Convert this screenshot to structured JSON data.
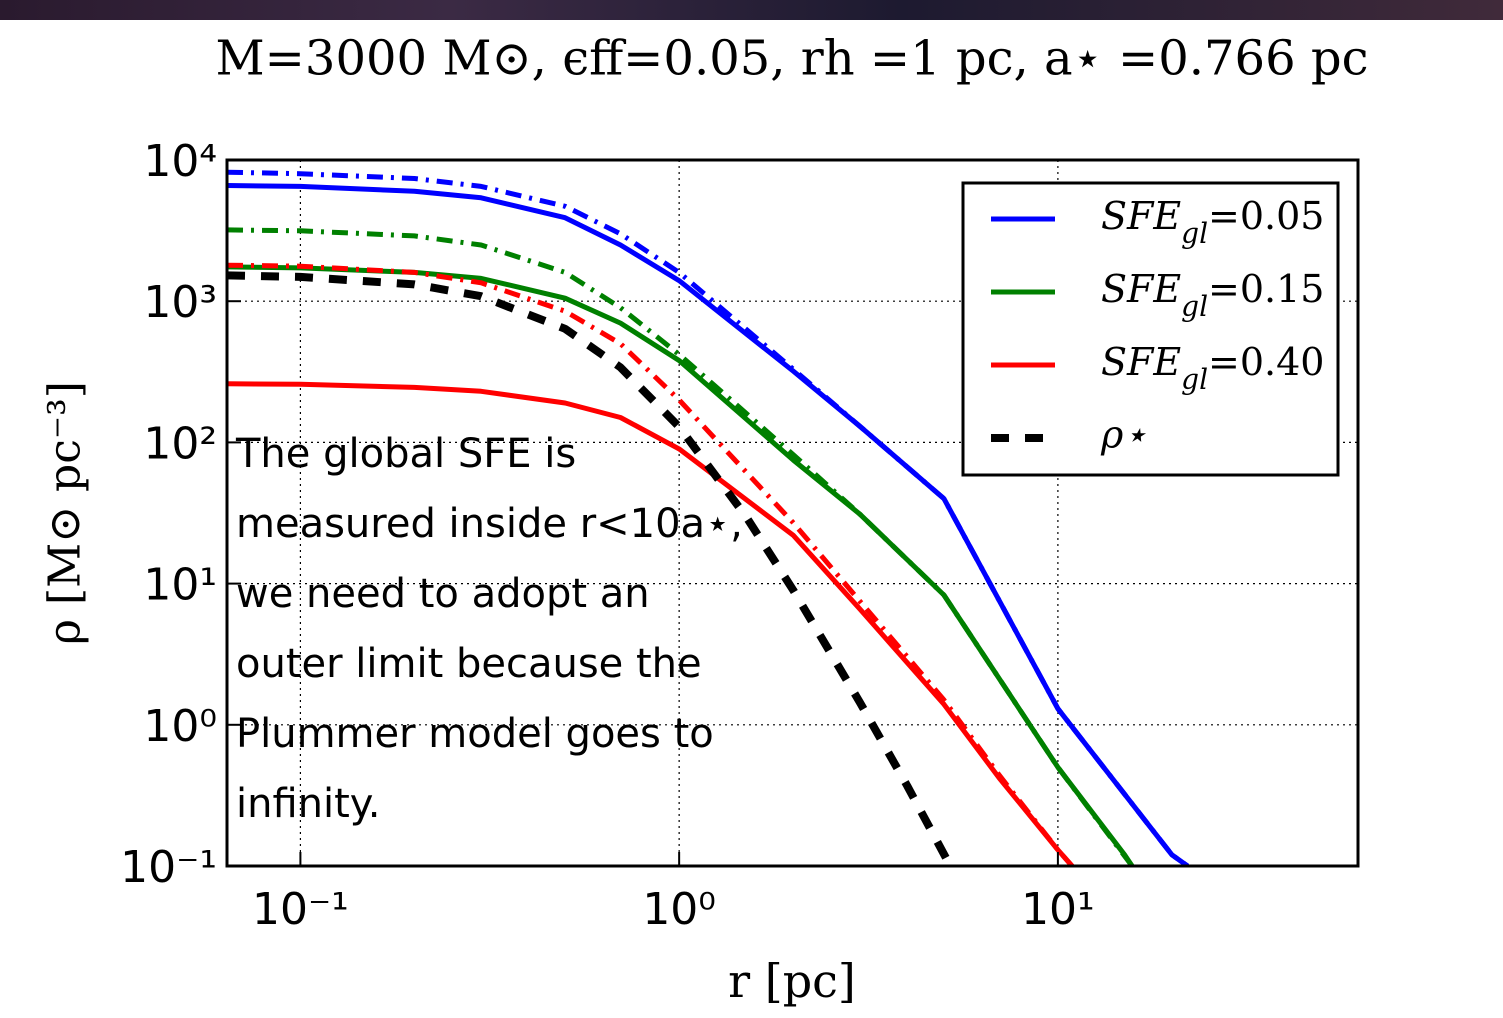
{
  "chart_data": {
    "type": "line",
    "title": "M=3000 M⊙, ϵff=0.05, rh =1 pc, a⋆ =0.766 pc",
    "xlabel": "r [pc]",
    "ylabel": "ρ [M⊙ pc⁻³]",
    "log_x": true,
    "log_y": true,
    "grid": true,
    "legend": "upper right",
    "xlim": [
      0.064,
      62
    ],
    "ylim": [
      0.1,
      10000
    ],
    "xticks": [
      {
        "value": 0.1,
        "label": "10⁻¹"
      },
      {
        "value": 1,
        "label": "10⁰"
      },
      {
        "value": 10,
        "label": "10¹"
      }
    ],
    "yticks": [
      {
        "value": 0.1,
        "label": "10⁻¹"
      },
      {
        "value": 1,
        "label": "10⁰"
      },
      {
        "value": 10,
        "label": "10¹"
      },
      {
        "value": 100,
        "label": "10²"
      },
      {
        "value": 1000,
        "label": "10³"
      },
      {
        "value": 10000,
        "label": "10⁴"
      }
    ],
    "annotation": [
      "The global SFE is",
      "measured inside r<10a⋆,",
      "we need to adopt an",
      "outer limit because the",
      "Plummer model goes to",
      "infinity."
    ],
    "series": [
      {
        "name": "SFEgl=0.05",
        "color": "#0000ff",
        "style": "solid",
        "x": [
          0.064,
          0.1,
          0.2,
          0.3,
          0.5,
          0.7,
          1,
          2,
          3,
          5,
          10,
          20,
          22
        ],
        "values": [
          6600,
          6500,
          6000,
          5400,
          3900,
          2500,
          1400,
          320,
          130,
          40,
          1.3,
          0.12,
          0.1
        ]
      },
      {
        "name": "SFEgl=0.15",
        "color": "#008000",
        "style": "solid",
        "x": [
          0.064,
          0.1,
          0.2,
          0.3,
          0.5,
          0.7,
          1,
          2,
          3,
          5,
          10,
          15,
          15.7
        ],
        "values": [
          1750,
          1720,
          1600,
          1450,
          1050,
          700,
          380,
          75,
          31,
          8.3,
          0.5,
          0.12,
          0.1
        ]
      },
      {
        "name": "SFEgl=0.40",
        "color": "#ff0000",
        "style": "solid",
        "x": [
          0.064,
          0.1,
          0.2,
          0.3,
          0.5,
          0.7,
          1,
          2,
          3,
          5,
          7,
          10,
          10.9
        ],
        "values": [
          260,
          258,
          245,
          230,
          190,
          150,
          90,
          22,
          6.6,
          1.4,
          0.42,
          0.13,
          0.1
        ]
      },
      {
        "name": "ρ⋆",
        "color": "#000000",
        "style": "dashed",
        "x": [
          0.064,
          0.1,
          0.2,
          0.3,
          0.5,
          0.7,
          1,
          1.5,
          2,
          3,
          4,
          5.2
        ],
        "values": [
          1524,
          1486,
          1315,
          1085,
          638,
          340,
          129,
          30,
          9,
          1.44,
          0.37,
          0.1
        ]
      },
      {
        "color": "#0000ff",
        "style": "dashdot",
        "x": [
          0.064,
          0.1,
          0.2,
          0.3,
          0.5,
          0.7,
          1,
          2,
          3,
          5,
          10,
          20,
          22
        ],
        "values": [
          8200,
          8000,
          7400,
          6500,
          4700,
          3000,
          1600,
          330,
          130,
          40,
          1.3,
          0.12,
          0.1
        ]
      },
      {
        "color": "#008000",
        "style": "dashdot",
        "x": [
          0.064,
          0.1,
          0.2,
          0.3,
          0.5,
          0.7,
          1,
          2,
          3,
          5,
          10,
          15.7
        ],
        "values": [
          3200,
          3150,
          2900,
          2500,
          1600,
          900,
          420,
          82,
          31,
          8.3,
          0.5,
          0.1
        ]
      },
      {
        "color": "#ff0000",
        "style": "dashdot",
        "x": [
          0.064,
          0.1,
          0.2,
          0.3,
          0.5,
          0.7,
          1,
          2,
          3,
          5,
          7,
          10,
          10.9
        ],
        "values": [
          1800,
          1770,
          1600,
          1350,
          850,
          500,
          200,
          27,
          7.5,
          1.5,
          0.44,
          0.13,
          0.1
        ]
      }
    ]
  }
}
